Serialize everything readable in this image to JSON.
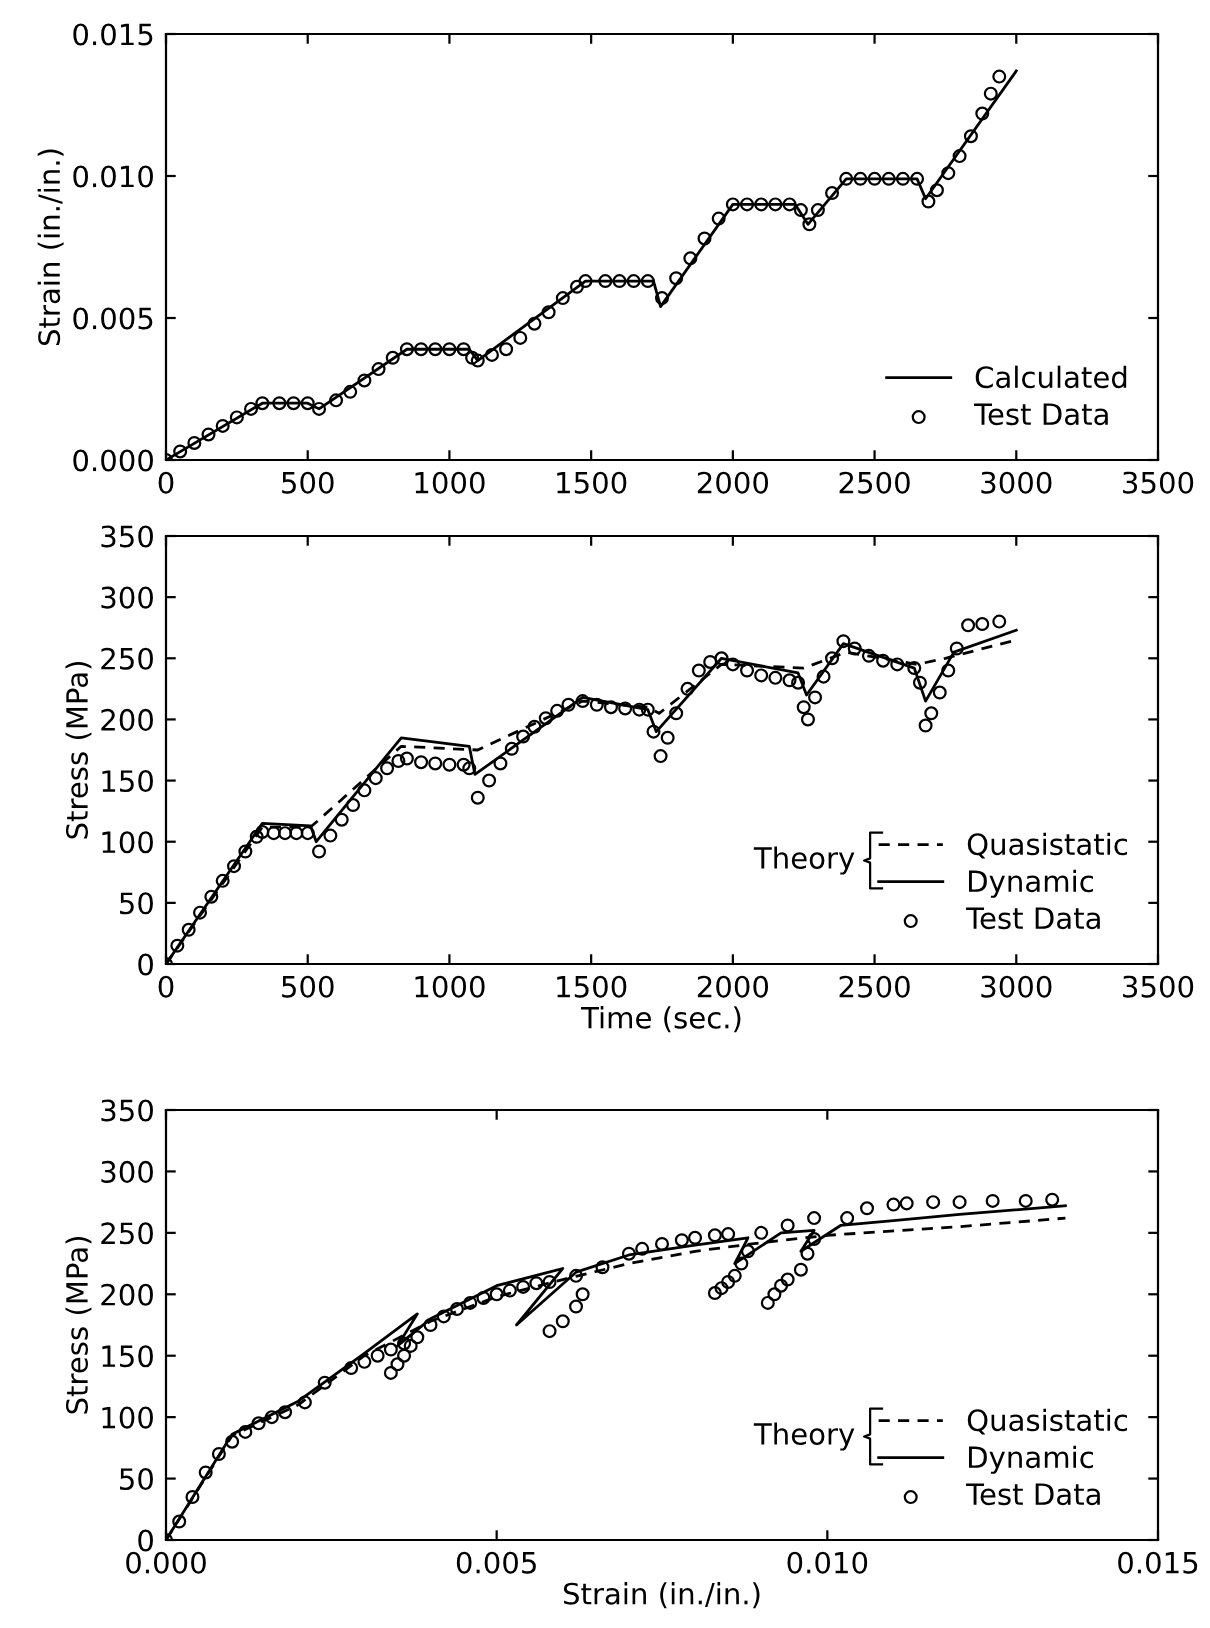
{
  "chart_data": [
    {
      "type": "line",
      "ylabel": "Strain (in./in.)",
      "xlim": [
        0,
        3500
      ],
      "xticks": [
        0,
        500,
        1000,
        1500,
        2000,
        2500,
        3000,
        3500
      ],
      "ylim": [
        0,
        0.015
      ],
      "yticks": [
        {
          "value": 0,
          "label": "0.000"
        },
        {
          "value": 0.005,
          "label": "0.005"
        },
        {
          "value": 0.01,
          "label": "0.010"
        },
        {
          "value": 0.015,
          "label": "0.015"
        }
      ],
      "grid": false,
      "legend": "bottom right",
      "series": [
        {
          "name": "Calculated",
          "line_style": "solid",
          "marker": "none",
          "color": "#000000",
          "x": [
            0,
            340,
            500,
            540,
            850,
            1070,
            1100,
            1480,
            1720,
            1745,
            2000,
            2220,
            2265,
            2400,
            2650,
            2680,
            3000
          ],
          "values": [
            0,
            0.002,
            0.002,
            0.0018,
            0.0039,
            0.0039,
            0.0035,
            0.0063,
            0.0063,
            0.0054,
            0.009,
            0.009,
            0.0083,
            0.0099,
            0.0099,
            0.0092,
            0.0137
          ]
        },
        {
          "name": "Test Data",
          "type": "scatter",
          "marker": "circle",
          "color": "#000000",
          "x": [
            0,
            50,
            100,
            150,
            200,
            250,
            300,
            340,
            400,
            450,
            500,
            540,
            600,
            650,
            700,
            750,
            800,
            850,
            900,
            950,
            1000,
            1050,
            1080,
            1100,
            1150,
            1200,
            1250,
            1300,
            1350,
            1400,
            1450,
            1480,
            1550,
            1600,
            1650,
            1700,
            1750,
            1800,
            1850,
            1900,
            1950,
            2000,
            2050,
            2100,
            2150,
            2200,
            2240,
            2270,
            2300,
            2350,
            2400,
            2450,
            2500,
            2550,
            2600,
            2650,
            2690,
            2720,
            2760,
            2800,
            2840,
            2880,
            2910,
            2940
          ],
          "values": [
            0,
            0.0003,
            0.0006,
            0.0009,
            0.0012,
            0.0015,
            0.0018,
            0.002,
            0.002,
            0.002,
            0.002,
            0.0018,
            0.0021,
            0.0024,
            0.0028,
            0.0032,
            0.0036,
            0.0039,
            0.0039,
            0.0039,
            0.0039,
            0.0039,
            0.0036,
            0.0035,
            0.0037,
            0.0039,
            0.0043,
            0.0048,
            0.0052,
            0.0057,
            0.0061,
            0.0063,
            0.0063,
            0.0063,
            0.0063,
            0.0063,
            0.0057,
            0.0064,
            0.0071,
            0.0078,
            0.0085,
            0.009,
            0.009,
            0.009,
            0.009,
            0.009,
            0.0088,
            0.0083,
            0.0088,
            0.0094,
            0.0099,
            0.0099,
            0.0099,
            0.0099,
            0.0099,
            0.0099,
            0.0091,
            0.0095,
            0.0101,
            0.0107,
            0.0114,
            0.0122,
            0.0129,
            0.0135
          ]
        }
      ]
    },
    {
      "type": "line",
      "xlabel": "Time (sec.)",
      "ylabel": "Stress (MPa)",
      "xlim": [
        0,
        3500
      ],
      "xticks": [
        0,
        500,
        1000,
        1500,
        2000,
        2500,
        3000,
        3500
      ],
      "ylim": [
        0,
        350
      ],
      "yticks": [
        0,
        50,
        100,
        150,
        200,
        250,
        300,
        350
      ],
      "grid": false,
      "legend": "bottom right",
      "legend_title": "Theory",
      "series": [
        {
          "name": "Quasistatic",
          "line_style": "dashed",
          "marker": "none",
          "color": "#000000",
          "x": [
            0,
            340,
            510,
            540,
            830,
            1100,
            1470,
            1700,
            1740,
            1960,
            2250,
            2400,
            2650,
            2750,
            3000
          ],
          "values": [
            0,
            112,
            112,
            118,
            178,
            175,
            215,
            210,
            205,
            245,
            242,
            255,
            245,
            250,
            265
          ]
        },
        {
          "name": "Dynamic",
          "line_style": "solid",
          "marker": "none",
          "color": "#000000",
          "x": [
            0,
            340,
            510,
            530,
            830,
            1070,
            1090,
            1470,
            1700,
            1730,
            1960,
            2230,
            2260,
            2390,
            2640,
            2680,
            2780,
            3000
          ],
          "values": [
            0,
            115,
            113,
            100,
            185,
            178,
            155,
            218,
            208,
            190,
            250,
            238,
            220,
            262,
            242,
            215,
            255,
            273
          ]
        },
        {
          "name": "Test Data",
          "type": "scatter",
          "marker": "circle",
          "color": "#000000",
          "x": [
            0,
            40,
            80,
            120,
            160,
            200,
            240,
            280,
            320,
            340,
            380,
            420,
            460,
            500,
            540,
            580,
            620,
            660,
            700,
            740,
            780,
            820,
            850,
            900,
            950,
            1000,
            1050,
            1070,
            1100,
            1140,
            1180,
            1220,
            1260,
            1300,
            1340,
            1380,
            1420,
            1470,
            1520,
            1570,
            1620,
            1670,
            1700,
            1720,
            1745,
            1770,
            1800,
            1840,
            1880,
            1920,
            1960,
            2000,
            2050,
            2100,
            2150,
            2200,
            2230,
            2250,
            2265,
            2290,
            2320,
            2350,
            2390,
            2430,
            2480,
            2530,
            2580,
            2640,
            2660,
            2680,
            2700,
            2730,
            2760,
            2790,
            2830,
            2880,
            2940
          ],
          "values": [
            0,
            15,
            28,
            42,
            55,
            68,
            80,
            92,
            104,
            108,
            107,
            107,
            107,
            107,
            92,
            105,
            118,
            130,
            142,
            152,
            160,
            166,
            168,
            165,
            164,
            163,
            163,
            160,
            136,
            150,
            164,
            176,
            186,
            194,
            201,
            207,
            212,
            215,
            212,
            210,
            209,
            208,
            208,
            190,
            170,
            185,
            205,
            225,
            240,
            247,
            250,
            245,
            240,
            236,
            234,
            232,
            230,
            210,
            200,
            218,
            235,
            250,
            264,
            258,
            252,
            248,
            245,
            242,
            230,
            195,
            205,
            222,
            240,
            258,
            277,
            278,
            280
          ]
        }
      ]
    },
    {
      "type": "line",
      "xlabel": "Strain (in./in.)",
      "ylabel": "Stress (MPa)",
      "xlim": [
        0,
        0.015
      ],
      "xticks": [
        {
          "value": 0,
          "label": "0.000"
        },
        {
          "value": 0.005,
          "label": "0.005"
        },
        {
          "value": 0.01,
          "label": "0.010"
        },
        {
          "value": 0.015,
          "label": "0.015"
        }
      ],
      "ylim": [
        0,
        350
      ],
      "yticks": [
        0,
        50,
        100,
        150,
        200,
        250,
        300,
        350
      ],
      "grid": false,
      "legend": "bottom right",
      "legend_title": "Theory",
      "series": [
        {
          "name": "Quasistatic",
          "line_style": "dashed",
          "marker": "none",
          "color": "#000000",
          "x": [
            0,
            0.001,
            0.002,
            0.003,
            0.004,
            0.005,
            0.006,
            0.007,
            0.008,
            0.009,
            0.01,
            0.012,
            0.0136
          ],
          "values": [
            0,
            85,
            110,
            150,
            178,
            198,
            212,
            225,
            235,
            242,
            248,
            255,
            262
          ]
        },
        {
          "name": "Dynamic",
          "line_style": "solid",
          "marker": "none",
          "color": "#000000",
          "x": [
            0,
            0.001,
            0.002,
            0.003,
            0.0038,
            0.0035,
            0.004,
            0.005,
            0.006,
            0.0053,
            0.0062,
            0.007,
            0.008,
            0.0088,
            0.0086,
            0.0093,
            0.0098,
            0.0096,
            0.0102,
            0.011,
            0.012,
            0.0136
          ],
          "values": [
            0,
            86,
            113,
            152,
            184,
            158,
            180,
            207,
            221,
            175,
            218,
            232,
            240,
            246,
            225,
            250,
            252,
            235,
            256,
            260,
            265,
            272
          ]
        },
        {
          "name": "Test Data",
          "type": "scatter",
          "marker": "circle",
          "color": "#000000",
          "x": [
            0,
            0.0002,
            0.0004,
            0.0006,
            0.0008,
            0.001,
            0.0012,
            0.0014,
            0.0016,
            0.0018,
            0.0021,
            0.0024,
            0.0028,
            0.003,
            0.0032,
            0.0034,
            0.0036,
            0.0038,
            0.004,
            0.0042,
            0.0044,
            0.0046,
            0.0048,
            0.005,
            0.0052,
            0.0054,
            0.0056,
            0.0058,
            0.0062,
            0.0066,
            0.007,
            0.0072,
            0.0075,
            0.0078,
            0.008,
            0.0083,
            0.0085,
            0.009,
            0.0094,
            0.0098,
            0.0103,
            0.0106,
            0.011,
            0.0112,
            0.0116,
            0.012,
            0.0125,
            0.013,
            0.0134,
            0.0034,
            0.0035,
            0.0036,
            0.0037,
            0.0058,
            0.006,
            0.0062,
            0.0063,
            0.0083,
            0.0084,
            0.0085,
            0.0086,
            0.0087,
            0.0088,
            0.0091,
            0.0092,
            0.0093,
            0.0094,
            0.0096,
            0.0097,
            0.0098
          ],
          "values": [
            0,
            15,
            35,
            55,
            70,
            80,
            88,
            95,
            100,
            104,
            112,
            128,
            140,
            145,
            150,
            155,
            160,
            165,
            175,
            182,
            188,
            193,
            197,
            200,
            203,
            206,
            209,
            210,
            215,
            222,
            233,
            237,
            241,
            244,
            246,
            248,
            249,
            250,
            256,
            262,
            262,
            270,
            273,
            274,
            275,
            275,
            276,
            276,
            277,
            136,
            143,
            150,
            158,
            170,
            178,
            190,
            200,
            201,
            205,
            210,
            215,
            225,
            235,
            193,
            200,
            207,
            212,
            220,
            233,
            245
          ]
        }
      ]
    }
  ]
}
